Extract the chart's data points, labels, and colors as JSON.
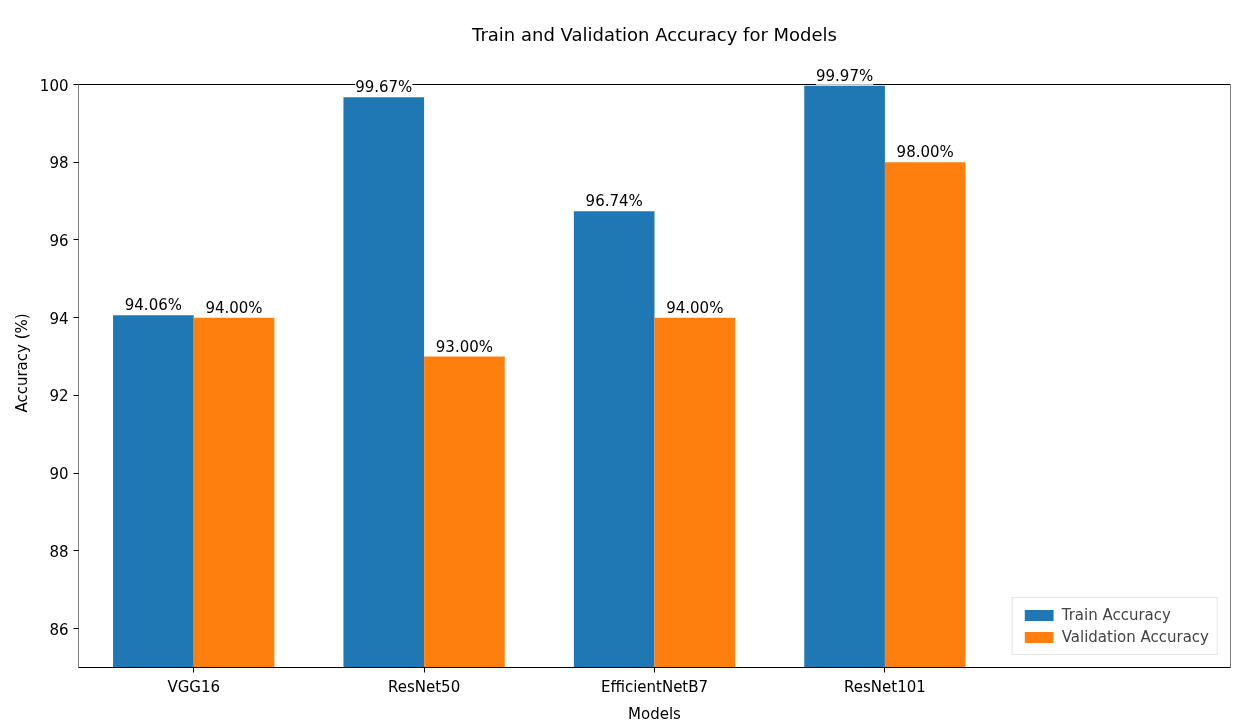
{
  "chart_data": {
    "type": "bar",
    "title": "Train and Validation Accuracy for Models",
    "xlabel": "Models",
    "ylabel": "Accuracy (%)",
    "categories": [
      "VGG16",
      "ResNet50",
      "EfficientNetB7",
      "ResNet101"
    ],
    "series": [
      {
        "name": "Train Accuracy",
        "color": "#1f77b4",
        "values": [
          94.06,
          99.67,
          96.74,
          99.97
        ],
        "value_labels": [
          "94.06%",
          "99.67%",
          "96.74%",
          "99.97%"
        ]
      },
      {
        "name": "Validation Accuracy",
        "color": "#ff7f0e",
        "values": [
          94.0,
          93.0,
          94.0,
          98.0
        ],
        "value_labels": [
          "94.00%",
          "93.00%",
          "94.00%",
          "98.00%"
        ]
      }
    ],
    "ylim": [
      85,
      100
    ],
    "yticks": [
      86,
      88,
      90,
      92,
      94,
      96,
      98,
      100
    ],
    "legend": "bottom right"
  }
}
